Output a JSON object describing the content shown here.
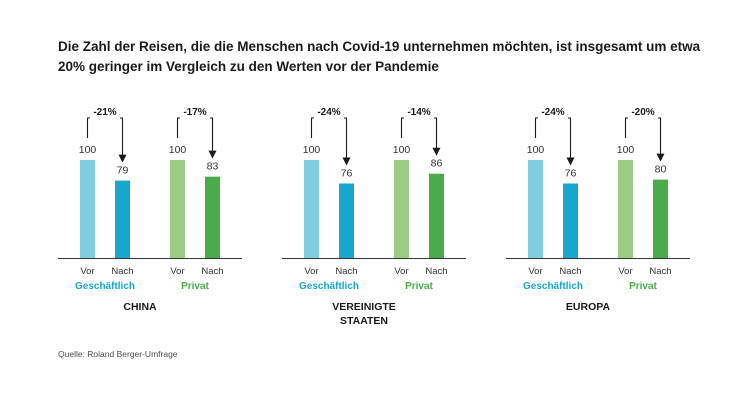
{
  "title_lines": [
    "Die Zahl der Reisen, die die Menschen nach Covid-19 unternehmen möchten, ist insgesamt um etwa",
    "20% geringer im Vergleich zu den Werten vor der Pandemie"
  ],
  "source": "Quelle: Roland Berger-Umfrage",
  "chart_data": {
    "type": "bar",
    "title": "Die Zahl der Reisen, die die Menschen nach Covid-19 unternehmen möchten, ist insgesamt um etwa 20% geringer im Vergleich zu den Werten vor der Pandemie",
    "categories": [
      "Vor",
      "Nach"
    ],
    "ylim": [
      0,
      100
    ],
    "grid": false,
    "colors": {
      "geschaeftlich_vor": "#7ecde3",
      "geschaeftlich_nach": "#17a7cc",
      "privat_vor": "#9ccc86",
      "privat_nach": "#4aab4a",
      "geschaeftlich_label": "#17a7cc",
      "privat_label": "#4aab4a",
      "axis": "#333333"
    },
    "panels": [
      {
        "region": [
          "CHINA"
        ],
        "groups": [
          {
            "key": "geschaeftlich",
            "name": "Geschäftlich",
            "values": [
              100,
              79
            ],
            "change": "-21%"
          },
          {
            "key": "privat",
            "name": "Privat",
            "values": [
              100,
              83
            ],
            "change": "-17%"
          }
        ]
      },
      {
        "region": [
          "VEREINIGTE",
          "STAATEN"
        ],
        "groups": [
          {
            "key": "geschaeftlich",
            "name": "Geschäftlich",
            "values": [
              100,
              76
            ],
            "change": "-24%"
          },
          {
            "key": "privat",
            "name": "Privat",
            "values": [
              100,
              86
            ],
            "change": "-14%"
          }
        ]
      },
      {
        "region": [
          "EUROPA"
        ],
        "groups": [
          {
            "key": "geschaeftlich",
            "name": "Geschäftlich",
            "values": [
              100,
              76
            ],
            "change": "-24%"
          },
          {
            "key": "privat",
            "name": "Privat",
            "values": [
              100,
              80
            ],
            "change": "-20%"
          }
        ]
      }
    ]
  }
}
